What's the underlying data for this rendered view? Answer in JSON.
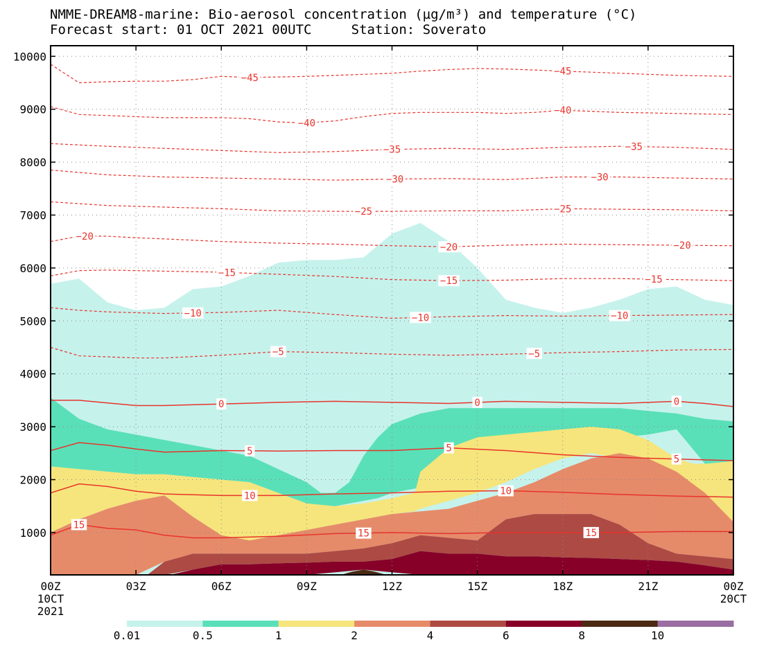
{
  "title_line1": "NMME-DREAM8-marine: Bio-aerosol concentration (µg/m³) and temperature (°C)",
  "title_line2": "Forecast start: 01 OCT 2021 00UTC     Station: Soverato",
  "chart_data": {
    "type": "area",
    "title": "NMME-DREAM8-marine: Bio-aerosol concentration (µg/m³) and temperature (°C)",
    "subtitle": "Forecast start: 01 OCT 2021 00UTC     Station: Soverato",
    "xlabel": "",
    "ylabel": "",
    "xlim": [
      0,
      24
    ],
    "ylim": [
      200,
      10200
    ],
    "grid": true,
    "x_ticks": [
      {
        "x": 0,
        "lines": [
          "00Z",
          "10CT",
          "2021"
        ]
      },
      {
        "x": 3,
        "lines": [
          "03Z"
        ]
      },
      {
        "x": 6,
        "lines": [
          "06Z"
        ]
      },
      {
        "x": 9,
        "lines": [
          "09Z"
        ]
      },
      {
        "x": 12,
        "lines": [
          "12Z"
        ]
      },
      {
        "x": 15,
        "lines": [
          "15Z"
        ]
      },
      {
        "x": 18,
        "lines": [
          "18Z"
        ]
      },
      {
        "x": 21,
        "lines": [
          "21Z"
        ]
      },
      {
        "x": 24,
        "lines": [
          "00Z",
          "20CT"
        ]
      }
    ],
    "y_ticks": [
      1000,
      2000,
      3000,
      4000,
      5000,
      6000,
      7000,
      8000,
      9000,
      10000
    ],
    "colorbar": {
      "labels": [
        "0.01",
        "0.5",
        "1",
        "2",
        "4",
        "6",
        "8",
        "10"
      ],
      "colors": [
        "#c6f2ec",
        "#5ae0b8",
        "#f6e57c",
        "#e68b6a",
        "#ad4a44",
        "#860028",
        "#4a2a12",
        "#9a6ea2"
      ]
    },
    "concentration_levels": [
      {
        "threshold": 0.01,
        "color": "#c6f2ec",
        "top_x": [
          0,
          1,
          2,
          3,
          4,
          5,
          6,
          7,
          8,
          9,
          10,
          11,
          12,
          13,
          14,
          15,
          16,
          17,
          18,
          19,
          20,
          21,
          22,
          23,
          24
        ],
        "top_height": [
          5700,
          5800,
          5350,
          5200,
          5250,
          5600,
          5650,
          5850,
          6100,
          6150,
          6150,
          6200,
          6650,
          6850,
          6500,
          6000,
          5400,
          5250,
          5150,
          5250,
          5400,
          5600,
          5650,
          5400,
          5300
        ]
      },
      {
        "threshold": 0.5,
        "color": "#5ae0b8",
        "top_x": [
          0,
          1,
          2,
          3,
          4,
          5,
          6,
          7,
          8,
          9,
          9.5,
          10,
          10.5,
          11,
          11.5,
          12,
          13,
          14,
          15,
          16,
          17,
          18,
          19,
          20,
          21,
          22,
          23,
          24
        ],
        "top_height": [
          3550,
          3150,
          2950,
          2850,
          2750,
          2650,
          2550,
          2450,
          2200,
          1950,
          1750,
          1750,
          1950,
          2450,
          2800,
          3050,
          3250,
          3350,
          3350,
          3350,
          3350,
          3350,
          3350,
          3350,
          3300,
          3250,
          3150,
          3100
        ],
        "bottom_height": [
          2250,
          2200,
          2150,
          2100,
          2100,
          2050,
          2000,
          1950,
          1750,
          1550,
          1500,
          1500,
          1550,
          1600,
          1650,
          1750,
          1850,
          2050,
          2300,
          2450,
          2550,
          2650,
          2750,
          2800,
          2850,
          2950,
          2300,
          2350
        ]
      },
      {
        "threshold": 1,
        "color": "#f6e57c",
        "top_x": [
          0,
          1,
          2,
          3,
          4,
          5,
          6,
          7,
          8,
          9,
          10,
          11,
          12,
          12.8,
          13,
          14,
          15,
          16,
          17,
          18,
          19,
          20,
          21,
          22,
          22.6,
          23,
          24
        ],
        "top_height": [
          2250,
          2200,
          2150,
          2100,
          2100,
          2050,
          2000,
          1950,
          1750,
          1550,
          1500,
          1550,
          1650,
          1750,
          2150,
          2600,
          2800,
          2850,
          2900,
          2950,
          3000,
          2950,
          2750,
          2400,
          2300,
          2300,
          2350
        ],
        "bottom_height": [
          1000,
          1250,
          1450,
          1600,
          1700,
          1300,
          950,
          850,
          950,
          1050,
          1150,
          1250,
          1350,
          1400,
          1450,
          1600,
          1750,
          1950,
          2200,
          2400,
          2500,
          2400,
          2150,
          1750,
          1400,
          1200,
          1200
        ]
      },
      {
        "threshold": 2,
        "color": "#e68b6a",
        "top_x": [
          0,
          1,
          2,
          3,
          4,
          5,
          6,
          7,
          8,
          9,
          10,
          11,
          12,
          13,
          14,
          15,
          16,
          17,
          18,
          19,
          20,
          21,
          22,
          23,
          24
        ],
        "top_height": [
          1000,
          1250,
          1450,
          1600,
          1700,
          1300,
          950,
          850,
          950,
          1050,
          1150,
          1250,
          1350,
          1400,
          1450,
          1600,
          1750,
          1950,
          2200,
          2400,
          2500,
          2400,
          2150,
          1750,
          1200
        ],
        "bottom_height": [
          200,
          200,
          200,
          200,
          450,
          600,
          600,
          600,
          600,
          600,
          650,
          700,
          800,
          950,
          900,
          850,
          1250,
          1350,
          1350,
          1350,
          1150,
          800,
          600,
          550,
          500
        ]
      },
      {
        "threshold": 4,
        "color": "#ad4a44",
        "top_x": [
          3.4,
          4,
          5,
          6,
          7,
          8,
          9,
          10,
          11,
          12,
          13,
          14,
          15,
          16,
          17,
          18,
          19,
          20,
          21,
          22,
          23,
          24
        ],
        "top_height": [
          200,
          450,
          600,
          600,
          600,
          600,
          600,
          650,
          700,
          800,
          950,
          900,
          850,
          1250,
          1350,
          1350,
          1350,
          1150,
          800,
          600,
          550,
          500
        ],
        "bottom_height": [
          200,
          200,
          300,
          400,
          400,
          420,
          430,
          450,
          450,
          500,
          650,
          600,
          600,
          550,
          550,
          530,
          520,
          500,
          480,
          450,
          380,
          300
        ]
      },
      {
        "threshold": 6,
        "color": "#860028",
        "top_x": [
          4.2,
          5,
          6,
          7,
          8,
          9,
          10,
          11,
          12,
          13,
          14,
          15,
          16,
          17,
          18,
          19,
          20,
          21,
          22,
          23,
          24
        ],
        "top_height": [
          200,
          300,
          400,
          400,
          420,
          430,
          450,
          450,
          500,
          650,
          600,
          600,
          550,
          550,
          530,
          520,
          500,
          480,
          450,
          380,
          300
        ],
        "bottom_height": [
          200,
          200,
          200,
          200,
          200,
          200,
          250,
          300,
          250,
          200,
          200,
          200,
          200,
          200,
          200,
          200,
          200,
          200,
          200,
          200,
          200
        ]
      },
      {
        "threshold": 8,
        "color": "#4a2a12",
        "top_x": [
          10.2,
          10.6,
          11,
          11.4,
          11.8
        ],
        "top_height": [
          200,
          260,
          300,
          260,
          200
        ]
      }
    ],
    "series": [
      {
        "name": "-45",
        "x": [
          0,
          1,
          2,
          3,
          4,
          5,
          6,
          7,
          8,
          9,
          10,
          11,
          12,
          13,
          14,
          15,
          16,
          17,
          18,
          19,
          20,
          21,
          22,
          23,
          24
        ],
        "y": [
          9850,
          9500,
          9520,
          9530,
          9530,
          9560,
          9620,
          9600,
          9610,
          9620,
          9640,
          9660,
          9680,
          9720,
          9750,
          9770,
          9760,
          9740,
          9720,
          9700,
          9680,
          9660,
          9640,
          9630,
          9620
        ],
        "labels": [
          {
            "x": 7,
            "text": "-45"
          },
          {
            "x": 18,
            "text": "-45"
          }
        ]
      },
      {
        "name": "-40",
        "x": [
          0,
          1,
          2,
          3,
          4,
          5,
          6,
          7,
          8,
          9,
          10,
          11,
          12,
          13,
          14,
          15,
          16,
          17,
          18,
          19,
          20,
          21,
          22,
          23,
          24
        ],
        "y": [
          9050,
          8900,
          8880,
          8860,
          8840,
          8840,
          8840,
          8820,
          8760,
          8740,
          8780,
          8860,
          8920,
          8940,
          8940,
          8940,
          8920,
          8940,
          8980,
          8960,
          8940,
          8930,
          8920,
          8910,
          8900
        ],
        "labels": [
          {
            "x": 9,
            "text": "-40"
          },
          {
            "x": 18,
            "text": "-40"
          }
        ]
      },
      {
        "name": "-35",
        "x": [
          0,
          2,
          4,
          6,
          8,
          10,
          12,
          14,
          16,
          18,
          20,
          22,
          24
        ],
        "y": [
          8350,
          8300,
          8260,
          8220,
          8180,
          8200,
          8240,
          8260,
          8240,
          8280,
          8300,
          8280,
          8240
        ],
        "labels": [
          {
            "x": 12,
            "text": "-35"
          },
          {
            "x": 20.5,
            "text": "-35"
          }
        ]
      },
      {
        "name": "-30",
        "x": [
          0,
          2,
          4,
          6,
          8,
          10,
          12,
          14,
          16,
          18,
          20,
          22,
          24
        ],
        "y": [
          7850,
          7760,
          7720,
          7700,
          7680,
          7660,
          7680,
          7690,
          7670,
          7720,
          7720,
          7700,
          7680
        ],
        "labels": [
          {
            "x": 12.1,
            "text": "-30"
          },
          {
            "x": 19.3,
            "text": "-30"
          }
        ]
      },
      {
        "name": "-25",
        "x": [
          0,
          2,
          4,
          6,
          8,
          10,
          12,
          14,
          16,
          18,
          20,
          22,
          24
        ],
        "y": [
          7250,
          7180,
          7150,
          7120,
          7080,
          7070,
          7070,
          7080,
          7080,
          7120,
          7110,
          7100,
          7080
        ],
        "labels": [
          {
            "x": 11,
            "text": "-25"
          },
          {
            "x": 18,
            "text": "-25"
          }
        ]
      },
      {
        "name": "-20",
        "x": [
          0,
          1,
          2,
          3,
          4,
          6,
          8,
          10,
          12,
          14,
          16,
          18,
          20,
          22,
          24
        ],
        "y": [
          6500,
          6600,
          6600,
          6570,
          6550,
          6500,
          6470,
          6450,
          6420,
          6400,
          6430,
          6450,
          6440,
          6430,
          6420
        ],
        "labels": [
          {
            "x": 1.2,
            "text": "-20"
          },
          {
            "x": 14,
            "text": "-20"
          },
          {
            "x": 22.2,
            "text": "-20"
          }
        ]
      },
      {
        "name": "-15",
        "x": [
          0,
          1,
          2,
          4,
          6,
          8,
          10,
          12,
          14,
          16,
          18,
          20,
          22,
          24
        ],
        "y": [
          5850,
          5950,
          5960,
          5940,
          5920,
          5880,
          5840,
          5780,
          5760,
          5770,
          5800,
          5800,
          5780,
          5760
        ],
        "labels": [
          {
            "x": 6.2,
            "text": "-15"
          },
          {
            "x": 14,
            "text": "-15"
          },
          {
            "x": 21.2,
            "text": "-15"
          }
        ]
      },
      {
        "name": "-10",
        "x": [
          0,
          1,
          2,
          4,
          6,
          8,
          10,
          12,
          14,
          16,
          18,
          20,
          22,
          24
        ],
        "y": [
          5250,
          5200,
          5170,
          5140,
          5160,
          5200,
          5120,
          5050,
          5080,
          5100,
          5090,
          5100,
          5110,
          5120
        ],
        "labels": [
          {
            "x": 5,
            "text": "-10"
          },
          {
            "x": 13,
            "text": "-10"
          },
          {
            "x": 20,
            "text": "-10"
          }
        ]
      },
      {
        "name": "-5",
        "x": [
          0,
          1,
          2,
          3,
          4,
          6,
          8,
          10,
          12,
          14,
          16,
          18,
          20,
          22,
          24
        ],
        "y": [
          4500,
          4340,
          4320,
          4300,
          4300,
          4350,
          4420,
          4400,
          4370,
          4350,
          4370,
          4400,
          4420,
          4450,
          4460
        ],
        "labels": [
          {
            "x": 8,
            "text": "-5"
          },
          {
            "x": 17,
            "text": "-5"
          }
        ]
      },
      {
        "name": "0",
        "x": [
          0,
          1,
          2,
          3,
          4,
          6,
          8,
          10,
          12,
          14,
          16,
          18,
          20,
          22,
          23,
          24
        ],
        "y": [
          3500,
          3500,
          3450,
          3400,
          3400,
          3430,
          3460,
          3480,
          3460,
          3440,
          3480,
          3460,
          3440,
          3480,
          3440,
          3380
        ],
        "labels": [
          {
            "x": 6,
            "text": "0"
          },
          {
            "x": 15,
            "text": "0"
          },
          {
            "x": 22,
            "text": "0"
          }
        ]
      },
      {
        "name": "5",
        "x": [
          0,
          1,
          2,
          3,
          4,
          6,
          8,
          10,
          12,
          14,
          16,
          18,
          20,
          22,
          24
        ],
        "y": [
          2550,
          2700,
          2650,
          2580,
          2520,
          2550,
          2540,
          2550,
          2550,
          2600,
          2550,
          2470,
          2420,
          2390,
          2360
        ],
        "labels": [
          {
            "x": 7,
            "text": "5"
          },
          {
            "x": 14,
            "text": "5"
          },
          {
            "x": 22,
            "text": "5"
          }
        ]
      },
      {
        "name": "10",
        "x": [
          0,
          1,
          2,
          3,
          4,
          6,
          8,
          10,
          12,
          14,
          16,
          18,
          20,
          22,
          24
        ],
        "y": [
          1750,
          1920,
          1870,
          1780,
          1730,
          1700,
          1700,
          1730,
          1750,
          1780,
          1790,
          1760,
          1720,
          1690,
          1670
        ],
        "labels": [
          {
            "x": 7,
            "text": "10"
          },
          {
            "x": 16,
            "text": "10"
          }
        ]
      },
      {
        "name": "15",
        "x": [
          0,
          1,
          2,
          3,
          4,
          5,
          6,
          8,
          10,
          12,
          14,
          16,
          18,
          20,
          22,
          24
        ],
        "y": [
          950,
          1150,
          1080,
          1050,
          950,
          900,
          900,
          930,
          980,
          1000,
          980,
          1000,
          1000,
          1000,
          1020,
          1020
        ],
        "labels": [
          {
            "x": 1,
            "text": "15"
          },
          {
            "x": 11,
            "text": "15"
          },
          {
            "x": 19,
            "text": "15"
          }
        ]
      }
    ]
  }
}
